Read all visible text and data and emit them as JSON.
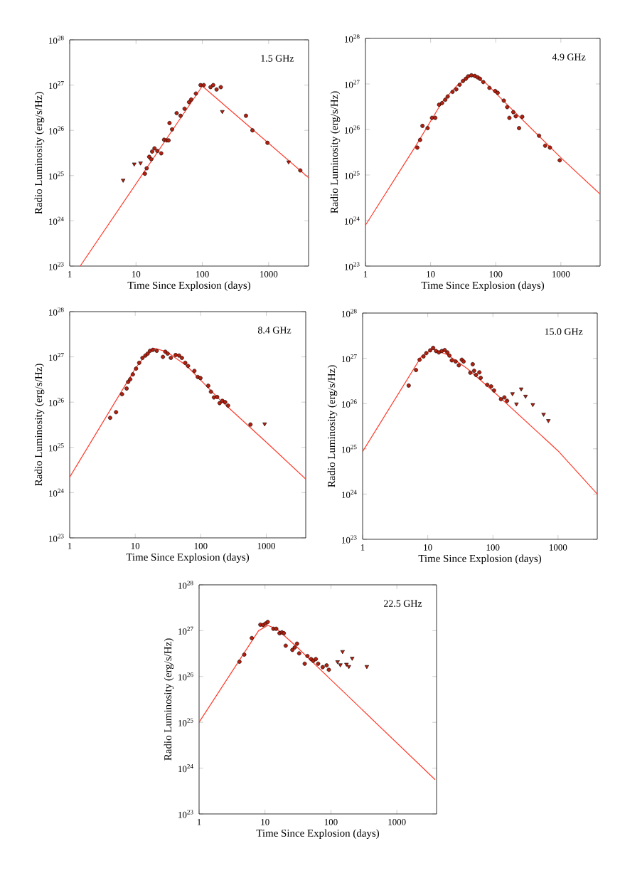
{
  "chart_data": [
    {
      "type": "scatter",
      "xlabel": "Time Since Explosion (days)",
      "ylabel": "Radio Luminosity (erg/s/Hz)",
      "annotations": [
        "1.5 GHz"
      ],
      "log": "xy",
      "xlim": [
        1,
        4000
      ],
      "ylim": [
        1e+23,
        1e+28
      ],
      "xticks": [
        1,
        10,
        100,
        1000
      ],
      "yticks": [
        {
          "value": 1e+23,
          "label": "10$^{23}$"
        },
        {
          "value": 1e+24,
          "label": "10$^{24}$"
        },
        {
          "value": 1e+25,
          "label": "10$^{25}$"
        },
        {
          "value": 1e+26,
          "label": "10$^{26}$"
        },
        {
          "value": 1e+27,
          "label": "10$^{27}$"
        },
        {
          "value": 1e+28,
          "label": "10$^{28}$"
        }
      ],
      "series": [
        {
          "type": "line",
          "marker": "none",
          "color": "#ff3a2a",
          "x": [
            1.44,
            100,
            4000
          ],
          "values": [
            1e+23,
            9.5e+26,
            9e+24
          ]
        },
        {
          "type": "scatter",
          "marker": "circle",
          "color": "#b3200f",
          "x": [
            13.6,
            14.5,
            15.8,
            17,
            17.5,
            19,
            21,
            24,
            26.5,
            29,
            31,
            32,
            35,
            41,
            47,
            54,
            63,
            68,
            80,
            94,
            105,
            133,
            146,
            164,
            190,
            455,
            570,
            960,
            3000
          ],
          "values": [
            1.1e+25,
            1.45e+25,
            2.6e+25,
            2.3e+25,
            3.4e+25,
            4e+25,
            3.5e+25,
            3.1e+25,
            6.2e+25,
            6e+25,
            6e+25,
            1.45e+26,
            1.05e+26,
            2.4e+26,
            2.1e+26,
            3e+26,
            4.2e+26,
            4.8e+26,
            6.5e+26,
            1e+27,
            1e+27,
            9e+26,
            1e+27,
            8e+26,
            9e+26,
            2.1e+26,
            1e+26,
            5.3e+25,
            1.3e+25
          ]
        },
        {
          "type": "scatter",
          "marker": "triangle",
          "color": "#b3200f",
          "x": [
            6.4,
            9.4,
            11.7,
            200,
            2000
          ],
          "values": [
            7.9e+24,
            1.8e+25,
            1.9e+25,
            2.6e+26,
            2e+25
          ]
        }
      ]
    },
    {
      "type": "scatter",
      "xlabel": "Time Since Explosion (days)",
      "ylabel": "Radio Luminosity (erg/s/Hz)",
      "annotations": [
        "4.9 GHz"
      ],
      "log": "xy",
      "xlim": [
        1,
        4000
      ],
      "ylim": [
        1e+23,
        1e+28
      ],
      "xticks": [
        1,
        10,
        100,
        1000
      ],
      "yticks": [
        {
          "value": 1e+23,
          "label": "10$^{23}$"
        },
        {
          "value": 1e+24,
          "label": "10$^{24}$"
        },
        {
          "value": 1e+25,
          "label": "10$^{25}$"
        },
        {
          "value": 1e+26,
          "label": "10$^{26}$"
        },
        {
          "value": 1e+27,
          "label": "10$^{27}$"
        },
        {
          "value": 1e+28,
          "label": "10$^{28}$"
        }
      ],
      "series": [
        {
          "type": "line",
          "marker": "none",
          "color": "#ff3a2a",
          "x": [
            1,
            6,
            15,
            25,
            42,
            70,
            150,
            1000,
            4000
          ],
          "values": [
            7.9e+23,
            4.5e+25,
            4e+26,
            9e+26,
            1.55e+27,
            1.05e+27,
            3.5e+26,
            2.4e+25,
            3.8e+24
          ]
        },
        {
          "type": "scatter",
          "marker": "circle",
          "color": "#b3200f",
          "x": [
            6.25,
            6.9,
            7.5,
            9.0,
            10.5,
            11.8,
            13.5,
            15,
            16.8,
            18.3,
            21.7,
            24.8,
            27.9,
            31.4,
            34.7,
            37.7,
            42.3,
            47.7,
            52.7,
            57.3,
            64.3,
            80,
            98,
            107,
            133,
            150,
            162,
            186,
            203,
            228,
            255,
            462,
            574,
            680,
            960
          ],
          "values": [
            4e+25,
            5.9e+25,
            1.2e+26,
            1.07e+26,
            1.8e+26,
            1.8e+26,
            3.5e+26,
            3.8e+26,
            4.5e+26,
            5.3e+26,
            6.7e+26,
            7.6e+26,
            9.6e+26,
            1.16e+27,
            1.3e+27,
            1.47e+27,
            1.55e+27,
            1.5e+27,
            1.4e+27,
            1.3e+27,
            1.1e+27,
            8.2e+26,
            7e+26,
            6.4e+26,
            4.3e+26,
            3.1e+26,
            1.8e+26,
            2.4e+26,
            1.95e+26,
            1.07e+26,
            1.9e+26,
            7.3e+25,
            4.4e+25,
            4e+25,
            2.1e+25
          ]
        }
      ]
    },
    {
      "type": "scatter",
      "xlabel": "Time Since Explosion (days)",
      "ylabel": "Radio Luminosity (erg/s/Hz)",
      "annotations": [
        "8.4 GHz"
      ],
      "log": "xy",
      "xlim": [
        1,
        4000
      ],
      "ylim": [
        1e+23,
        1e+28
      ],
      "xticks": [
        1,
        10,
        100,
        1000
      ],
      "yticks": [
        {
          "value": 1e+23,
          "label": "10$^{23}$"
        },
        {
          "value": 1e+24,
          "label": "10$^{24}$"
        },
        {
          "value": 1e+25,
          "label": "10$^{25}$"
        },
        {
          "value": 1e+26,
          "label": "10$^{26}$"
        },
        {
          "value": 1e+27,
          "label": "10$^{27}$"
        },
        {
          "value": 1e+28,
          "label": "10$^{28}$"
        }
      ],
      "series": [
        {
          "type": "line",
          "marker": "none",
          "color": "#ff3a2a",
          "x": [
            1,
            10,
            15,
            20,
            30,
            60,
            200,
            1000,
            4000
          ],
          "values": [
            2.2e+24,
            5.5e+26,
            1.2e+27,
            1.55e+27,
            1.3e+27,
            6.5e+26,
            1.1e+26,
            1.3e+25,
            2e+24
          ]
        },
        {
          "type": "scatter",
          "marker": "circle",
          "color": "#b3200f",
          "x": [
            4.14,
            5.1,
            6.3,
            7.4,
            7.8,
            8.4,
            9.2,
            10.3,
            11.5,
            12.9,
            14.3,
            15.5,
            16.8,
            18.6,
            21.3,
            26.5,
            28.8,
            31.3,
            35,
            41.4,
            46.7,
            51.6,
            58,
            64,
            80,
            90,
            99,
            130,
            143,
            159,
            178,
            194,
            214,
            236,
            261,
            574
          ],
          "values": [
            4.5e+25,
            6e+25,
            1.5e+26,
            2e+26,
            2.8e+26,
            3.2e+26,
            4.1e+26,
            5.5e+26,
            7.4e+26,
            9.5e+26,
            1.07e+27,
            1.18e+27,
            1.36e+27,
            1.43e+27,
            1.36e+27,
            1e+27,
            1.3e+27,
            1.18e+27,
            9.5e+26,
            1.1e+27,
            1.07e+27,
            9.5e+26,
            7.4e+26,
            6.3e+26,
            4.9e+26,
            3.6e+26,
            3.4e+26,
            2.3e+26,
            1.7e+26,
            1.27e+26,
            1.3e+26,
            9.5e+25,
            1.07e+26,
            1e+26,
            8.4e+25,
            3.2e+25
          ]
        },
        {
          "type": "scatter",
          "marker": "triangle",
          "color": "#b3200f",
          "x": [
            945
          ],
          "values": [
            3.3e+25
          ]
        }
      ]
    },
    {
      "type": "scatter",
      "xlabel": "Time Since Explosion (days)",
      "ylabel": "Radio Luminosity (erg/s/Hz)",
      "annotations": [
        "15.0 GHz"
      ],
      "log": "xy",
      "xlim": [
        1,
        4000
      ],
      "ylim": [
        1e+23,
        1e+28
      ],
      "xticks": [
        1,
        10,
        100,
        1000
      ],
      "yticks": [
        {
          "value": 1e+23,
          "label": "10$^{23}$"
        },
        {
          "value": 1e+24,
          "label": "10$^{24}$"
        },
        {
          "value": 1e+25,
          "label": "10$^{25}$"
        },
        {
          "value": 1e+26,
          "label": "10$^{26}$"
        },
        {
          "value": 1e+27,
          "label": "10$^{27}$"
        },
        {
          "value": 1e+28,
          "label": "10$^{28}$"
        }
      ],
      "series": [
        {
          "type": "line",
          "marker": "none",
          "color": "#ff3a2a",
          "x": [
            1,
            8,
            12,
            20,
            40,
            100,
            1000,
            4000
          ],
          "values": [
            8.7e+24,
            1.1e+27,
            1.6e+27,
            1.2e+27,
            6e+26,
            1.9e+26,
            9e+24,
            1e+24
          ]
        },
        {
          "type": "scatter",
          "marker": "circle",
          "color": "#b3200f",
          "x": [
            5.1,
            6.6,
            7.5,
            8.6,
            9.5,
            10.9,
            12.1,
            13.4,
            14.8,
            16.4,
            18.2,
            20,
            21.5,
            23.4,
            26.8,
            30,
            33.3,
            35.5,
            45,
            49,
            51.5,
            55,
            62,
            65,
            82,
            94,
            104,
            133,
            150,
            165
          ],
          "values": [
            2.5e+26,
            5.5e+26,
            9.3e+26,
            1.1e+27,
            1.3e+27,
            1.5e+27,
            1.7e+27,
            1.45e+27,
            1.35e+27,
            1.45e+27,
            1.52e+27,
            1.35e+27,
            1.15e+27,
            9e+26,
            8.5e+26,
            7e+26,
            9.3e+26,
            8.5e+26,
            4.8e+26,
            7.4e+26,
            5.3e+26,
            4.3e+26,
            4.9e+26,
            3.7e+26,
            2.6e+26,
            2.4e+26,
            1.95e+26,
            1.25e+26,
            1.37e+26,
            1.15e+26
          ]
        },
        {
          "type": "scatter",
          "marker": "triangle",
          "color": "#b3200f",
          "x": [
            200,
            230,
            272,
            317,
            410,
            600,
            710
          ],
          "values": [
            1.65e+26,
            9.8e+25,
            2.1e+26,
            1.45e+26,
            9.5e+25,
            5.8e+25,
            4.2e+25
          ]
        }
      ]
    },
    {
      "type": "scatter",
      "xlabel": "Time Since Explosion (days)",
      "ylabel": "Radio Luminosity (erg/s/Hz)",
      "annotations": [
        "22.5 GHz"
      ],
      "log": "xy",
      "xlim": [
        1,
        4000
      ],
      "ylim": [
        1e+23,
        1e+28
      ],
      "xticks": [
        1,
        10,
        100,
        1000
      ],
      "yticks": [
        {
          "value": 1e+23,
          "label": "10$^{23}$"
        },
        {
          "value": 1e+24,
          "label": "10$^{24}$"
        },
        {
          "value": 1e+25,
          "label": "10$^{25}$"
        },
        {
          "value": 1e+26,
          "label": "10$^{26}$"
        },
        {
          "value": 1e+27,
          "label": "10$^{27}$"
        },
        {
          "value": 1e+28,
          "label": "10$^{28}$"
        }
      ],
      "series": [
        {
          "type": "line",
          "marker": "none",
          "color": "#ff3a2a",
          "x": [
            1,
            8,
            11,
            15,
            30,
            100,
            3800
          ],
          "values": [
            1e+25,
            1e+27,
            1.3e+27,
            1.1e+27,
            4.5e+26,
            8.5e+25,
            5.6e+23
          ]
        },
        {
          "type": "scatter",
          "marker": "circle",
          "color": "#b3200f",
          "x": [
            4.1,
            4.85,
            6.3,
            8.5,
            9.4,
            10.2,
            11,
            13.4,
            14.8,
            16.6,
            18,
            19.3,
            20.6,
            26,
            28.2,
            30.6,
            33,
            40,
            44,
            50,
            54,
            59,
            64,
            75,
            86,
            93
          ],
          "values": [
            2.1e+26,
            3e+26,
            6.9e+26,
            1.35e+27,
            1.33e+27,
            1.43e+27,
            1.55e+27,
            1.1e+27,
            1.1e+27,
            8.8e+26,
            9.2e+26,
            8.8e+26,
            4.7e+26,
            3.8e+26,
            4.3e+26,
            5.2e+26,
            3.2e+26,
            1.9e+26,
            2.8e+26,
            2.4e+26,
            2.2e+26,
            2.4e+26,
            1.9e+26,
            1.6e+26,
            1.75e+26,
            1.4e+26
          ]
        },
        {
          "type": "scatter",
          "marker": "triangle",
          "color": "#b3200f",
          "x": [
            126,
            139,
            150,
            172,
            187,
            210,
            350
          ],
          "values": [
            2.1e+26,
            1.8e+26,
            3.5e+26,
            1.85e+26,
            1.65e+26,
            2.5e+26,
            1.65e+26
          ]
        }
      ]
    }
  ]
}
